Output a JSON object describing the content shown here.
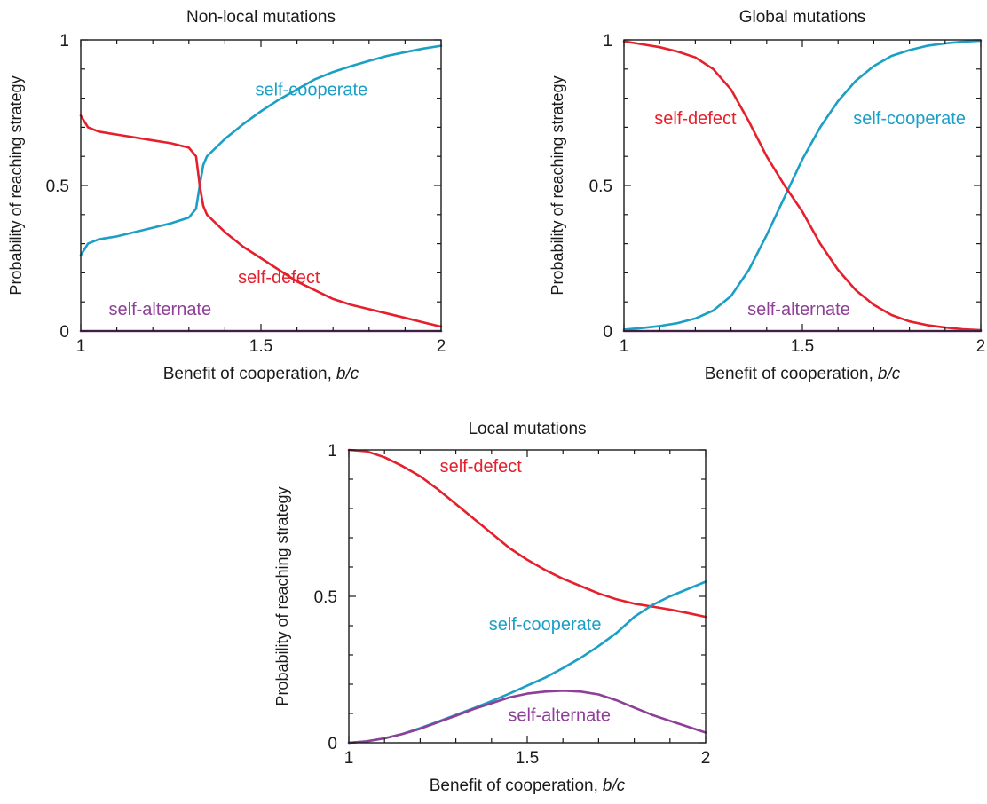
{
  "chart_data": [
    {
      "type": "line",
      "title": "Non-local mutations",
      "xlabel": "Benefit of cooperation,",
      "xlabel_var": "b/c",
      "ylabel": "Probability of reaching strategy",
      "xlim": [
        1,
        2
      ],
      "ylim": [
        0,
        1
      ],
      "x_ticks": [
        1,
        1.5,
        2
      ],
      "x_tick_labels": [
        "1",
        "1.5",
        "2"
      ],
      "y_ticks": [
        0,
        0.5,
        1
      ],
      "y_tick_labels": [
        "0",
        "0.5",
        "1"
      ],
      "grid": false,
      "series": [
        {
          "name": "self-cooperate",
          "color": "#1b9fc6",
          "x": [
            1,
            1.02,
            1.05,
            1.1,
            1.15,
            1.2,
            1.25,
            1.3,
            1.32,
            1.33,
            1.34,
            1.35,
            1.4,
            1.45,
            1.5,
            1.55,
            1.6,
            1.65,
            1.7,
            1.75,
            1.8,
            1.85,
            1.9,
            1.95,
            2
          ],
          "y": [
            0.26,
            0.3,
            0.315,
            0.325,
            0.34,
            0.355,
            0.37,
            0.39,
            0.42,
            0.5,
            0.57,
            0.6,
            0.66,
            0.71,
            0.755,
            0.795,
            0.83,
            0.865,
            0.89,
            0.91,
            0.928,
            0.945,
            0.958,
            0.97,
            0.98
          ]
        },
        {
          "name": "self-defect",
          "color": "#e5202c",
          "x": [
            1,
            1.02,
            1.05,
            1.1,
            1.15,
            1.2,
            1.25,
            1.3,
            1.32,
            1.33,
            1.34,
            1.35,
            1.4,
            1.45,
            1.5,
            1.55,
            1.6,
            1.65,
            1.7,
            1.75,
            1.8,
            1.85,
            1.9,
            1.95,
            2
          ],
          "y": [
            0.74,
            0.7,
            0.685,
            0.675,
            0.665,
            0.655,
            0.645,
            0.63,
            0.6,
            0.5,
            0.43,
            0.4,
            0.34,
            0.29,
            0.25,
            0.21,
            0.17,
            0.14,
            0.11,
            0.09,
            0.075,
            0.06,
            0.045,
            0.03,
            0.015
          ]
        },
        {
          "name": "self-alternate",
          "color": "#8e3f98",
          "x": [
            1,
            2
          ],
          "y": [
            0,
            0
          ]
        }
      ],
      "annotations": [
        {
          "text": "self-cooperate",
          "series": "self-cooperate",
          "x": 1.64,
          "y": 0.81
        },
        {
          "text": "self-defect",
          "series": "self-defect",
          "x": 1.55,
          "y": 0.165
        },
        {
          "text": "self-alternate",
          "series": "self-alternate",
          "x": 1.22,
          "y": 0.055
        }
      ]
    },
    {
      "type": "line",
      "title": "Global mutations",
      "xlabel": "Benefit of cooperation,",
      "xlabel_var": "b/c",
      "ylabel": "Probability of reaching strategy",
      "xlim": [
        1,
        2
      ],
      "ylim": [
        0,
        1
      ],
      "x_ticks": [
        1,
        1.5,
        2
      ],
      "x_tick_labels": [
        "1",
        "1.5",
        "2"
      ],
      "y_ticks": [
        0,
        0.5,
        1
      ],
      "y_tick_labels": [
        "0",
        "0.5",
        "1"
      ],
      "grid": false,
      "series": [
        {
          "name": "self-cooperate",
          "color": "#1b9fc6",
          "x": [
            1,
            1.05,
            1.1,
            1.15,
            1.2,
            1.25,
            1.3,
            1.35,
            1.4,
            1.45,
            1.5,
            1.55,
            1.6,
            1.65,
            1.7,
            1.75,
            1.8,
            1.85,
            1.9,
            1.95,
            2
          ],
          "y": [
            0.005,
            0.01,
            0.017,
            0.027,
            0.043,
            0.07,
            0.12,
            0.21,
            0.33,
            0.46,
            0.59,
            0.7,
            0.79,
            0.86,
            0.91,
            0.945,
            0.965,
            0.98,
            0.988,
            0.994,
            0.997
          ]
        },
        {
          "name": "self-defect",
          "color": "#e5202c",
          "x": [
            1,
            1.05,
            1.1,
            1.15,
            1.2,
            1.25,
            1.3,
            1.35,
            1.4,
            1.45,
            1.5,
            1.55,
            1.6,
            1.65,
            1.7,
            1.75,
            1.8,
            1.85,
            1.9,
            1.95,
            2
          ],
          "y": [
            0.995,
            0.985,
            0.975,
            0.96,
            0.94,
            0.9,
            0.83,
            0.72,
            0.6,
            0.5,
            0.41,
            0.3,
            0.21,
            0.14,
            0.09,
            0.055,
            0.033,
            0.02,
            0.012,
            0.006,
            0.003
          ]
        },
        {
          "name": "self-alternate",
          "color": "#8e3f98",
          "x": [
            1,
            2
          ],
          "y": [
            0,
            0
          ]
        }
      ],
      "annotations": [
        {
          "text": "self-defect",
          "series": "self-defect",
          "x": 1.2,
          "y": 0.71
        },
        {
          "text": "self-cooperate",
          "series": "self-cooperate",
          "x": 1.8,
          "y": 0.71
        },
        {
          "text": "self-alternate",
          "series": "self-alternate",
          "x": 1.49,
          "y": 0.055
        }
      ]
    },
    {
      "type": "line",
      "title": "Local mutations",
      "xlabel": "Benefit of cooperation,",
      "xlabel_var": "b/c",
      "ylabel": "Probability of reaching strategy",
      "xlim": [
        1,
        2
      ],
      "ylim": [
        0,
        1
      ],
      "x_ticks": [
        1,
        1.5,
        2
      ],
      "x_tick_labels": [
        "1",
        "1.5",
        "2"
      ],
      "y_ticks": [
        0,
        0.5,
        1
      ],
      "y_tick_labels": [
        "0",
        "0.5",
        "1"
      ],
      "grid": false,
      "series": [
        {
          "name": "self-defect",
          "color": "#e5202c",
          "x": [
            1,
            1.05,
            1.1,
            1.15,
            1.2,
            1.25,
            1.3,
            1.35,
            1.4,
            1.45,
            1.5,
            1.55,
            1.6,
            1.65,
            1.7,
            1.75,
            1.8,
            1.85,
            1.9,
            1.95,
            2
          ],
          "y": [
            1.0,
            0.995,
            0.975,
            0.945,
            0.91,
            0.865,
            0.815,
            0.765,
            0.715,
            0.665,
            0.625,
            0.59,
            0.56,
            0.535,
            0.51,
            0.49,
            0.475,
            0.465,
            0.455,
            0.443,
            0.43
          ]
        },
        {
          "name": "self-cooperate",
          "color": "#1b9fc6",
          "x": [
            1,
            1.05,
            1.1,
            1.15,
            1.2,
            1.25,
            1.3,
            1.35,
            1.4,
            1.45,
            1.5,
            1.55,
            1.6,
            1.65,
            1.7,
            1.75,
            1.8,
            1.85,
            1.9,
            1.95,
            2
          ],
          "y": [
            0.0,
            0.005,
            0.015,
            0.03,
            0.05,
            0.072,
            0.095,
            0.118,
            0.142,
            0.168,
            0.195,
            0.222,
            0.255,
            0.29,
            0.33,
            0.375,
            0.43,
            0.47,
            0.5,
            0.525,
            0.55
          ]
        },
        {
          "name": "self-alternate",
          "color": "#8e3f98",
          "x": [
            1,
            1.05,
            1.1,
            1.15,
            1.2,
            1.25,
            1.3,
            1.35,
            1.4,
            1.45,
            1.5,
            1.55,
            1.6,
            1.65,
            1.7,
            1.75,
            1.8,
            1.85,
            1.9,
            1.95,
            2
          ],
          "y": [
            0.0,
            0.005,
            0.015,
            0.03,
            0.048,
            0.07,
            0.092,
            0.115,
            0.135,
            0.155,
            0.168,
            0.175,
            0.178,
            0.175,
            0.165,
            0.145,
            0.12,
            0.095,
            0.075,
            0.055,
            0.035
          ]
        }
      ],
      "annotations": [
        {
          "text": "self-defect",
          "series": "self-defect",
          "x": 1.37,
          "y": 0.925
        },
        {
          "text": "self-cooperate",
          "series": "self-cooperate",
          "x": 1.55,
          "y": 0.385
        },
        {
          "text": "self-alternate",
          "series": "self-alternate",
          "x": 1.59,
          "y": 0.075
        }
      ]
    }
  ]
}
